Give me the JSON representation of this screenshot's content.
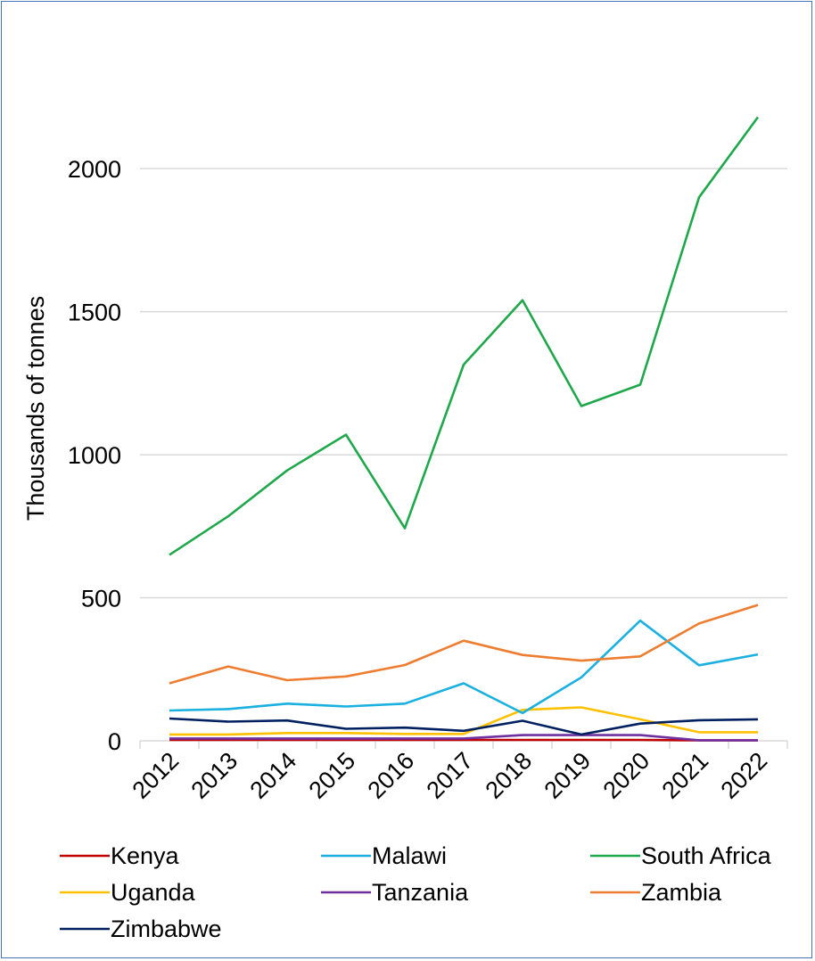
{
  "chart_data": {
    "type": "line",
    "title": "",
    "xlabel": "",
    "ylabel": "Thousands of tonnes",
    "ylim": [
      0,
      2200
    ],
    "yticks": [
      0,
      500,
      1000,
      1500,
      2000
    ],
    "grid": true,
    "legend_position": "bottom",
    "categories": [
      "2012",
      "2013",
      "2014",
      "2015",
      "2016",
      "2017",
      "2018",
      "2019",
      "2020",
      "2021",
      "2022"
    ],
    "series": [
      {
        "name": "Kenya",
        "color": "#c00000",
        "values": [
          3,
          3,
          3,
          3,
          3,
          3,
          3,
          3,
          3,
          2,
          2
        ]
      },
      {
        "name": "Malawi",
        "color": "#1ab0e0",
        "values": [
          106,
          111,
          130,
          120,
          130,
          201,
          97,
          222,
          420,
          264,
          302
        ]
      },
      {
        "name": "South Africa",
        "color": "#1fa84b",
        "values": [
          650,
          785,
          945,
          1070,
          743,
          1315,
          1540,
          1170,
          1245,
          1900,
          2180
        ]
      },
      {
        "name": "Uganda",
        "color": "#ffc000",
        "values": [
          22,
          22,
          27,
          27,
          24,
          24,
          108,
          117,
          75,
          30,
          30
        ]
      },
      {
        "name": "Tanzania",
        "color": "#7030a0",
        "values": [
          8,
          8,
          8,
          8,
          8,
          8,
          20,
          20,
          20,
          2,
          2
        ]
      },
      {
        "name": "Zambia",
        "color": "#ed7d31",
        "values": [
          201,
          260,
          212,
          225,
          265,
          350,
          300,
          280,
          295,
          410,
          475
        ]
      },
      {
        "name": "Zimbabwe",
        "color": "#002060",
        "values": [
          78,
          67,
          71,
          42,
          46,
          35,
          70,
          22,
          60,
          72,
          75
        ]
      }
    ]
  }
}
